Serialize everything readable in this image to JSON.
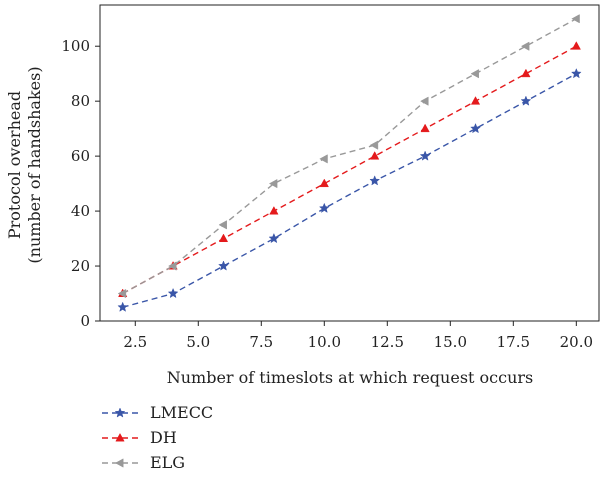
{
  "chart_data": {
    "type": "line",
    "xlabel": "Number of timeslots at which request occurs",
    "ylabel_line1": "Protocol overhead",
    "ylabel_line2": "(number of handshakes)",
    "xlim": [
      1.1,
      20.9
    ],
    "ylim": [
      0,
      115
    ],
    "xticks": [
      2.5,
      5.0,
      7.5,
      10.0,
      12.5,
      15.0,
      17.5,
      20.0
    ],
    "xtick_labels": [
      "2.5",
      "5.0",
      "7.5",
      "10.0",
      "12.5",
      "15.0",
      "17.5",
      "20.0"
    ],
    "yticks": [
      0,
      20,
      40,
      60,
      80,
      100
    ],
    "ytick_labels": [
      "0",
      "20",
      "40",
      "60",
      "80",
      "100"
    ],
    "grid": false,
    "legend_position": "bottom-left, below chart",
    "x": [
      2,
      4,
      6,
      8,
      10,
      12,
      14,
      16,
      18,
      20
    ],
    "series": [
      {
        "name": "LMECC",
        "color": "#3a56a8",
        "marker": "star",
        "dash": "dashed",
        "values": [
          5,
          10,
          20,
          30,
          41,
          51,
          60,
          70,
          80,
          90
        ]
      },
      {
        "name": "DH",
        "color": "#e41a1c",
        "marker": "triangle-up",
        "dash": "dashed",
        "values": [
          10,
          20,
          30,
          40,
          50,
          60,
          70,
          80,
          90,
          100
        ]
      },
      {
        "name": "ELG",
        "color": "#999999",
        "marker": "triangle-left",
        "dash": "dashed",
        "values": [
          10,
          20,
          35,
          50,
          59,
          64,
          80,
          90,
          100,
          110
        ]
      }
    ]
  }
}
